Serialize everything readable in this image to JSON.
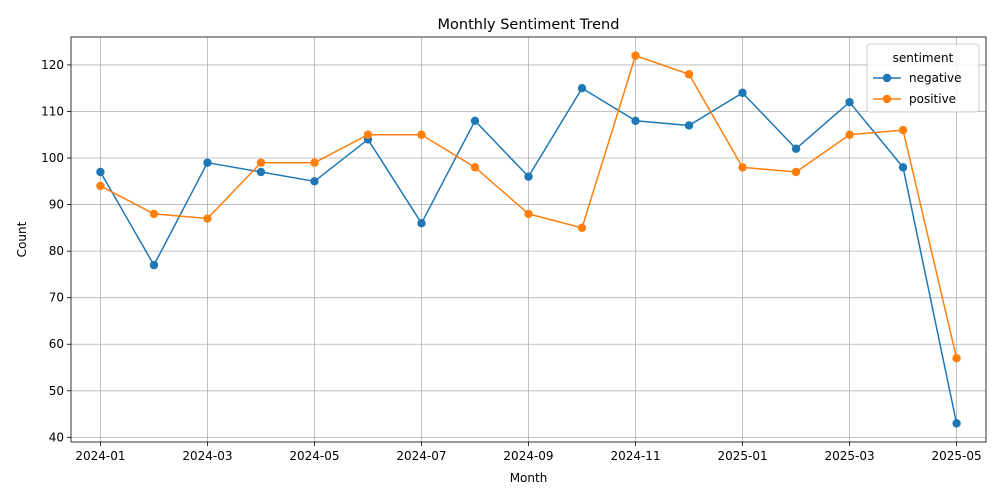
{
  "chart_data": {
    "type": "line",
    "title": "Monthly Sentiment Trend",
    "xlabel": "Month",
    "ylabel": "Count",
    "x": [
      "2024-01",
      "2024-02",
      "2024-03",
      "2024-04",
      "2024-05",
      "2024-06",
      "2024-07",
      "2024-08",
      "2024-09",
      "2024-10",
      "2024-11",
      "2024-12",
      "2025-01",
      "2025-02",
      "2025-03",
      "2025-04",
      "2025-05"
    ],
    "x_tick_labels": [
      "2024-01",
      "2024-03",
      "2024-05",
      "2024-07",
      "2024-09",
      "2024-11",
      "2025-01",
      "2025-03",
      "2025-05"
    ],
    "ylim": [
      39,
      126
    ],
    "y_ticks": [
      40,
      50,
      60,
      70,
      80,
      90,
      100,
      110,
      120
    ],
    "grid": true,
    "legend": {
      "title": "sentiment",
      "placement": "top-right"
    },
    "series": [
      {
        "name": "negative",
        "color": "#1f77b4",
        "values": [
          97,
          77,
          99,
          97,
          95,
          104,
          86,
          108,
          96,
          115,
          108,
          107,
          114,
          102,
          112,
          98,
          43
        ]
      },
      {
        "name": "positive",
        "color": "#ff7f0e",
        "values": [
          94,
          88,
          87,
          99,
          99,
          105,
          105,
          98,
          88,
          85,
          122,
          118,
          98,
          97,
          105,
          106,
          57
        ]
      }
    ]
  }
}
